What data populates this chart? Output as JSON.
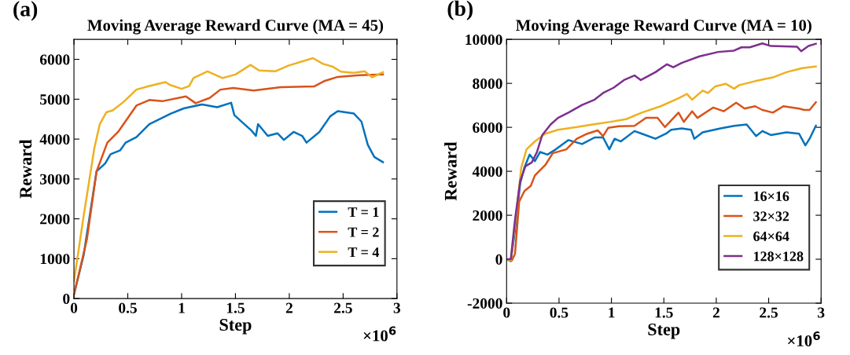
{
  "chart_data": [
    {
      "type": "line",
      "title": "Moving Average Reward Curve (MA = 45)",
      "xlabel": "Step",
      "ylabel": "Reward",
      "annotations": [
        "(a)",
        "×10$^{6}$"
      ],
      "xlim": [
        0,
        3
      ],
      "xticks": [
        0,
        0.5,
        1,
        1.5,
        2,
        2.5,
        3
      ],
      "ylim": [
        0,
        6500
      ],
      "yticks": [
        0,
        1000,
        2000,
        3000,
        4000,
        5000,
        6000
      ],
      "grid": false,
      "legend": "bottom right",
      "line_style": "solid",
      "series": [
        {
          "name": "T = 1",
          "color": "#0072bd",
          "x": [
            0,
            0.09,
            0.21,
            0.29,
            0.34,
            0.43,
            0.48,
            0.58,
            0.7,
            0.9,
            1.02,
            1.19,
            1.33,
            1.46,
            1.49,
            1.65,
            1.69,
            1.71,
            1.8,
            1.89,
            1.95,
            2.04,
            2.12,
            2.16,
            2.28,
            2.38,
            2.45,
            2.6,
            2.67,
            2.73,
            2.79,
            2.87
          ],
          "values": [
            100,
            1085,
            3190,
            3390,
            3620,
            3720,
            3910,
            4050,
            4375,
            4640,
            4770,
            4870,
            4800,
            4910,
            4600,
            4210,
            4080,
            4375,
            4080,
            4145,
            3980,
            4180,
            4080,
            3910,
            4180,
            4570,
            4700,
            4640,
            4440,
            3850,
            3550,
            3420
          ]
        },
        {
          "name": "T = 2",
          "color": "#d95319",
          "x": [
            0,
            0.12,
            0.21,
            0.31,
            0.41,
            0.58,
            0.7,
            0.82,
            1.04,
            1.13,
            1.26,
            1.36,
            1.48,
            1.67,
            1.92,
            2.23,
            2.33,
            2.45,
            2.65,
            2.87
          ],
          "values": [
            100,
            1480,
            3190,
            3910,
            4180,
            4840,
            4980,
            4950,
            5070,
            4900,
            5030,
            5240,
            5280,
            5220,
            5300,
            5320,
            5460,
            5560,
            5600,
            5620
          ]
        },
        {
          "name": "T = 4",
          "color": "#edb120",
          "x": [
            0,
            0.09,
            0.19,
            0.24,
            0.3,
            0.36,
            0.46,
            0.58,
            0.7,
            0.85,
            0.89,
            1.0,
            1.07,
            1.11,
            1.24,
            1.38,
            1.5,
            1.64,
            1.72,
            1.87,
            1.99,
            2.22,
            2.31,
            2.4,
            2.48,
            2.6,
            2.7,
            2.77,
            2.87
          ],
          "values": [
            430,
            2070,
            3780,
            4375,
            4670,
            4720,
            4930,
            5240,
            5330,
            5430,
            5360,
            5260,
            5330,
            5530,
            5700,
            5530,
            5620,
            5860,
            5720,
            5700,
            5840,
            6030,
            5890,
            5820,
            5690,
            5660,
            5700,
            5550,
            5680
          ]
        }
      ]
    },
    {
      "type": "line",
      "title": "Moving Average Reward Curve (MA = 10)",
      "xlabel": "Step",
      "ylabel": "Reward",
      "annotations": [
        "(b)",
        "×10$^{6}$"
      ],
      "xlim": [
        0,
        3
      ],
      "xticks": [
        0,
        0.5,
        1,
        1.5,
        2,
        2.5,
        3
      ],
      "ylim": [
        -2000,
        10000
      ],
      "yticks": [
        -2000,
        0,
        2000,
        4000,
        6000,
        8000,
        10000
      ],
      "grid": false,
      "legend": "bottom right",
      "line_style": "solid",
      "series": [
        {
          "name": "16×16",
          "color": "#0072bd",
          "x": [
            0,
            0.04,
            0.08,
            0.13,
            0.17,
            0.22,
            0.27,
            0.32,
            0.39,
            0.47,
            0.59,
            0.72,
            0.84,
            0.92,
            0.98,
            1.03,
            1.09,
            1.22,
            1.29,
            1.42,
            1.52,
            1.57,
            1.67,
            1.76,
            1.79,
            1.87,
            2.04,
            2.17,
            2.29,
            2.38,
            2.44,
            2.52,
            2.67,
            2.79,
            2.85,
            2.89,
            2.95
          ],
          "values": [
            0,
            -95,
            1310,
            3450,
            4170,
            4760,
            4460,
            4880,
            4760,
            5000,
            5420,
            5240,
            5540,
            5540,
            5000,
            5480,
            5360,
            5830,
            5710,
            5480,
            5710,
            5890,
            5950,
            5890,
            5480,
            5770,
            5950,
            6070,
            6130,
            5600,
            5830,
            5650,
            5770,
            5710,
            5180,
            5480,
            6070
          ]
        },
        {
          "name": "32×32",
          "color": "#d95319",
          "x": [
            0,
            0.05,
            0.08,
            0.12,
            0.17,
            0.23,
            0.27,
            0.37,
            0.44,
            0.57,
            0.67,
            0.77,
            0.87,
            0.92,
            0.97,
            1.07,
            1.22,
            1.33,
            1.44,
            1.51,
            1.64,
            1.69,
            1.77,
            1.82,
            1.97,
            2.07,
            2.19,
            2.27,
            2.37,
            2.44,
            2.54,
            2.64,
            2.79,
            2.84,
            2.89,
            2.95
          ],
          "values": [
            0,
            -60,
            240,
            2620,
            3100,
            3330,
            3810,
            4290,
            4820,
            5000,
            5480,
            5710,
            5860,
            5600,
            5980,
            6050,
            6070,
            6430,
            6430,
            6010,
            6670,
            6250,
            6730,
            6430,
            6900,
            6730,
            7120,
            6850,
            6960,
            6790,
            6670,
            6960,
            6850,
            6790,
            6790,
            7140
          ]
        },
        {
          "name": "64×64",
          "color": "#edb120",
          "x": [
            0,
            0.04,
            0.09,
            0.14,
            0.19,
            0.27,
            0.37,
            0.49,
            0.67,
            0.82,
            0.99,
            1.14,
            1.29,
            1.47,
            1.64,
            1.72,
            1.77,
            1.87,
            1.92,
            1.99,
            2.09,
            2.17,
            2.22,
            2.37,
            2.54,
            2.67,
            2.82,
            2.95
          ],
          "values": [
            0,
            -60,
            2020,
            4170,
            5000,
            5360,
            5710,
            5890,
            6010,
            6130,
            6250,
            6370,
            6670,
            6960,
            7320,
            7520,
            7260,
            7670,
            7560,
            7860,
            7980,
            7760,
            7920,
            8100,
            8270,
            8510,
            8690,
            8770
          ]
        },
        {
          "name": "128×128",
          "color": "#7e2f8e",
          "x": [
            0,
            0.04,
            0.08,
            0.13,
            0.18,
            0.24,
            0.29,
            0.34,
            0.42,
            0.49,
            0.59,
            0.72,
            0.84,
            0.92,
            1.02,
            1.12,
            1.22,
            1.28,
            1.42,
            1.53,
            1.59,
            1.67,
            1.84,
            2.02,
            2.17,
            2.24,
            2.32,
            2.44,
            2.52,
            2.77,
            2.81,
            2.88,
            2.95
          ],
          "values": [
            0,
            0,
            1790,
            3570,
            4230,
            4400,
            4880,
            5650,
            6130,
            6430,
            6670,
            7020,
            7260,
            7560,
            7800,
            8150,
            8360,
            8150,
            8510,
            8870,
            8730,
            8930,
            9230,
            9430,
            9490,
            9640,
            9640,
            9820,
            9700,
            9670,
            9460,
            9700,
            9800
          ]
        }
      ]
    }
  ]
}
